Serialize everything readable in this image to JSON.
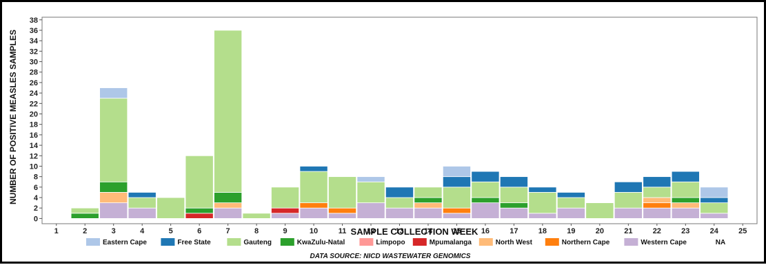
{
  "chart_data": {
    "type": "bar",
    "stacked": true,
    "xlabel": "SAMPLE COLLECTION WEEK",
    "ylabel": "NUMBER OF POSITIVE MEASLES SAMPLES",
    "caption": "DATA SOURCE: NICD WASTEWATER GENOMICS",
    "x_ticks": [
      "1",
      "2",
      "3",
      "4",
      "5",
      "6",
      "7",
      "8",
      "9",
      "10",
      "11",
      "12",
      "13",
      "14",
      "15",
      "16",
      "17",
      "18",
      "19",
      "20",
      "21",
      "22",
      "23",
      "24",
      "25"
    ],
    "y_ticks": [
      0,
      2,
      4,
      6,
      8,
      10,
      12,
      14,
      16,
      18,
      20,
      22,
      24,
      26,
      28,
      30,
      32,
      34,
      36,
      38
    ],
    "xlim": [
      0.5,
      25.5
    ],
    "ylim": [
      -1,
      38.5
    ],
    "grid": false,
    "legend_position": "bottom",
    "categories": [
      "2",
      "3",
      "4",
      "5",
      "6",
      "7",
      "8",
      "9",
      "10",
      "11",
      "12",
      "13",
      "14",
      "15",
      "16",
      "17",
      "18",
      "19",
      "20",
      "21",
      "22",
      "23",
      "24"
    ],
    "series": [
      {
        "name": "Western Cape",
        "color": "#c5b0d5",
        "values": [
          0,
          3,
          2,
          0,
          0,
          2,
          0,
          1,
          2,
          1,
          3,
          2,
          2,
          1,
          3,
          2,
          1,
          2,
          0,
          2,
          2,
          2,
          1
        ]
      },
      {
        "name": "Northern Cape",
        "color": "#ff7f0e",
        "values": [
          0,
          0,
          0,
          0,
          0,
          0,
          0,
          0,
          1,
          1,
          0,
          0,
          0,
          1,
          0,
          0,
          0,
          0,
          0,
          0,
          1,
          0,
          0
        ]
      },
      {
        "name": "North West",
        "color": "#ffbb78",
        "values": [
          0,
          2,
          0,
          0,
          0,
          1,
          0,
          0,
          0,
          0,
          0,
          0,
          1,
          0,
          0,
          0,
          0,
          0,
          0,
          0,
          1,
          1,
          0
        ]
      },
      {
        "name": "Mpumalanga",
        "color": "#d62728",
        "values": [
          0,
          0,
          0,
          0,
          1,
          0,
          0,
          1,
          0,
          0,
          0,
          0,
          0,
          0,
          0,
          0,
          0,
          0,
          0,
          0,
          0,
          0,
          0
        ]
      },
      {
        "name": "Limpopo",
        "color": "#ff9896",
        "values": [
          0,
          0,
          0,
          0,
          0,
          0,
          0,
          0,
          0,
          0,
          0,
          0,
          0,
          0,
          0,
          0,
          0,
          0,
          0,
          0,
          0,
          0,
          0
        ]
      },
      {
        "name": "KwaZulu-Natal",
        "color": "#2ca02c",
        "values": [
          1,
          2,
          0,
          0,
          1,
          2,
          0,
          0,
          0,
          0,
          0,
          0,
          1,
          0,
          1,
          1,
          0,
          0,
          0,
          0,
          0,
          1,
          0
        ]
      },
      {
        "name": "Gauteng",
        "color": "#b4de8c",
        "values": [
          1,
          16,
          2,
          4,
          10,
          31,
          1,
          4,
          6,
          6,
          4,
          2,
          2,
          4,
          3,
          3,
          4,
          2,
          3,
          3,
          2,
          3,
          2
        ]
      },
      {
        "name": "Free State",
        "color": "#1f77b4",
        "values": [
          0,
          0,
          1,
          0,
          0,
          0,
          0,
          0,
          1,
          0,
          0,
          2,
          0,
          2,
          2,
          2,
          1,
          1,
          0,
          2,
          2,
          2,
          1
        ]
      },
      {
        "name": "Eastern Cape",
        "color": "#aec7e8",
        "values": [
          0,
          2,
          0,
          0,
          0,
          0,
          0,
          0,
          0,
          0,
          1,
          0,
          0,
          2,
          0,
          0,
          0,
          0,
          0,
          0,
          0,
          0,
          2
        ]
      }
    ],
    "legend": [
      {
        "label": "Eastern Cape",
        "color": "#aec7e8"
      },
      {
        "label": "Free State",
        "color": "#1f77b4"
      },
      {
        "label": "Gauteng",
        "color": "#b4de8c"
      },
      {
        "label": "KwaZulu-Natal",
        "color": "#2ca02c"
      },
      {
        "label": "Limpopo",
        "color": "#ff9896"
      },
      {
        "label": "Mpumalanga",
        "color": "#d62728"
      },
      {
        "label": "North West",
        "color": "#ffbb78"
      },
      {
        "label": "Northern Cape",
        "color": "#ff7f0e"
      },
      {
        "label": "Western Cape",
        "color": "#c5b0d5"
      },
      {
        "label": "NA",
        "color": ""
      }
    ]
  }
}
